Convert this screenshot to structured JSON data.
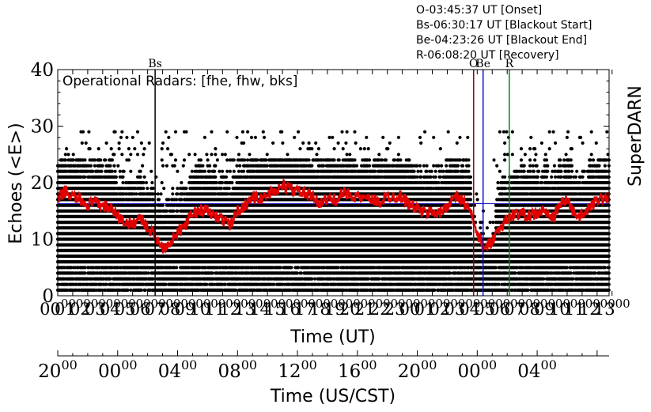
{
  "annotations": {
    "lines": [
      "O-03:45:37 UT [Onset]",
      "Bs-06:30:17 UT [Blackout Start]",
      "Be-04:23:26 UT [Blackout End]",
      "R-06:08:20 UT [Recovery]"
    ]
  },
  "panel_label": "SuperDARN",
  "colors": {
    "points": "#000000",
    "mean_line": "#e00000",
    "baseline": "#1f1fbf",
    "marker_Bs": "#000000",
    "marker_O": "#7b1010",
    "marker_Be": "#1010d0",
    "marker_R": "#108010"
  },
  "chart_data": {
    "type": "scatter",
    "title": "",
    "inset_text": "Operational Radars: [fhe, fhw, bks]",
    "ylabel": "Echoes (<E>)",
    "xlabel": "Time (UT)",
    "xlabel2": "Time (US/CST)",
    "ylim": [
      0,
      40
    ],
    "yticks": [
      0,
      10,
      20,
      30,
      40
    ],
    "x_range_hours": [
      0,
      36.8
    ],
    "xtick_labels_top_axis": [
      "00",
      "01",
      "02",
      "03",
      "04",
      "05",
      "06",
      "07",
      "08",
      "09",
      "10",
      "11",
      "12",
      "13",
      "14",
      "15",
      "16",
      "17",
      "18",
      "19",
      "20",
      "21",
      "22",
      "23",
      "00",
      "01",
      "02",
      "03",
      "04",
      "05",
      "06",
      "07",
      "08",
      "09",
      "10",
      "11",
      "12",
      "13"
    ],
    "xtick_labels_cst": [
      "20:00",
      "00:00",
      "04:00",
      "08:00",
      "12:00",
      "16:00",
      "20:00",
      "00:00",
      "04:00"
    ],
    "cst_offset_hours": -6,
    "baseline_value": 16.3,
    "markers": [
      {
        "label": "Bs",
        "hour": 6.5
      },
      {
        "label": "O",
        "hour": 27.76
      },
      {
        "label": "Be",
        "hour": 28.39
      },
      {
        "label": "R",
        "hour": 30.14
      }
    ],
    "series": [
      {
        "name": "<E>",
        "x": [
          0,
          0.5,
          1,
          1.5,
          2,
          2.5,
          3,
          3.5,
          4,
          4.5,
          5,
          5.5,
          6,
          6.5,
          7,
          7.5,
          8,
          8.5,
          9,
          9.5,
          10,
          10.5,
          11,
          11.5,
          12,
          12.5,
          13,
          13.5,
          14,
          14.5,
          15,
          15.5,
          16,
          16.5,
          17,
          17.5,
          18,
          18.5,
          19,
          19.5,
          20,
          20.5,
          21,
          21.5,
          22,
          22.5,
          23,
          23.5,
          24,
          24.5,
          25,
          25.5,
          26,
          26.5,
          27,
          27.5,
          28,
          28.5,
          29,
          29.5,
          30,
          30.5,
          31,
          31.5,
          32,
          32.5,
          33,
          33.5,
          34,
          34.5,
          35,
          35.5,
          36,
          36.5
        ],
        "y": [
          17,
          18.5,
          17.5,
          17,
          16,
          16.5,
          16,
          15.5,
          14,
          13,
          12.5,
          14,
          12,
          10.5,
          8.5,
          9.5,
          11,
          12.5,
          14.5,
          15,
          15,
          14,
          13.5,
          12.5,
          15,
          16,
          17.5,
          17,
          18,
          18.5,
          19.5,
          19,
          18.5,
          18,
          17.5,
          16.5,
          17,
          17,
          18,
          18,
          17.5,
          17,
          17,
          16.5,
          17.5,
          17.5,
          17.5,
          16,
          15.5,
          14.5,
          15,
          14.5,
          16,
          17.5,
          17,
          15,
          11,
          8,
          10,
          12,
          13.5,
          14.5,
          14.5,
          14,
          14.5,
          15,
          13.5,
          16,
          17,
          14.5,
          14,
          15.5,
          17,
          17.5
        ]
      }
    ],
    "scatter_levels": {
      "dense_rows": [
        1,
        2,
        3,
        4,
        5,
        6,
        7,
        8,
        9,
        10,
        11,
        12,
        13,
        14,
        15,
        16,
        17,
        18,
        19,
        20,
        21,
        22,
        23,
        24
      ],
      "sparse_rows": [
        25,
        26,
        27,
        28,
        29
      ]
    }
  }
}
